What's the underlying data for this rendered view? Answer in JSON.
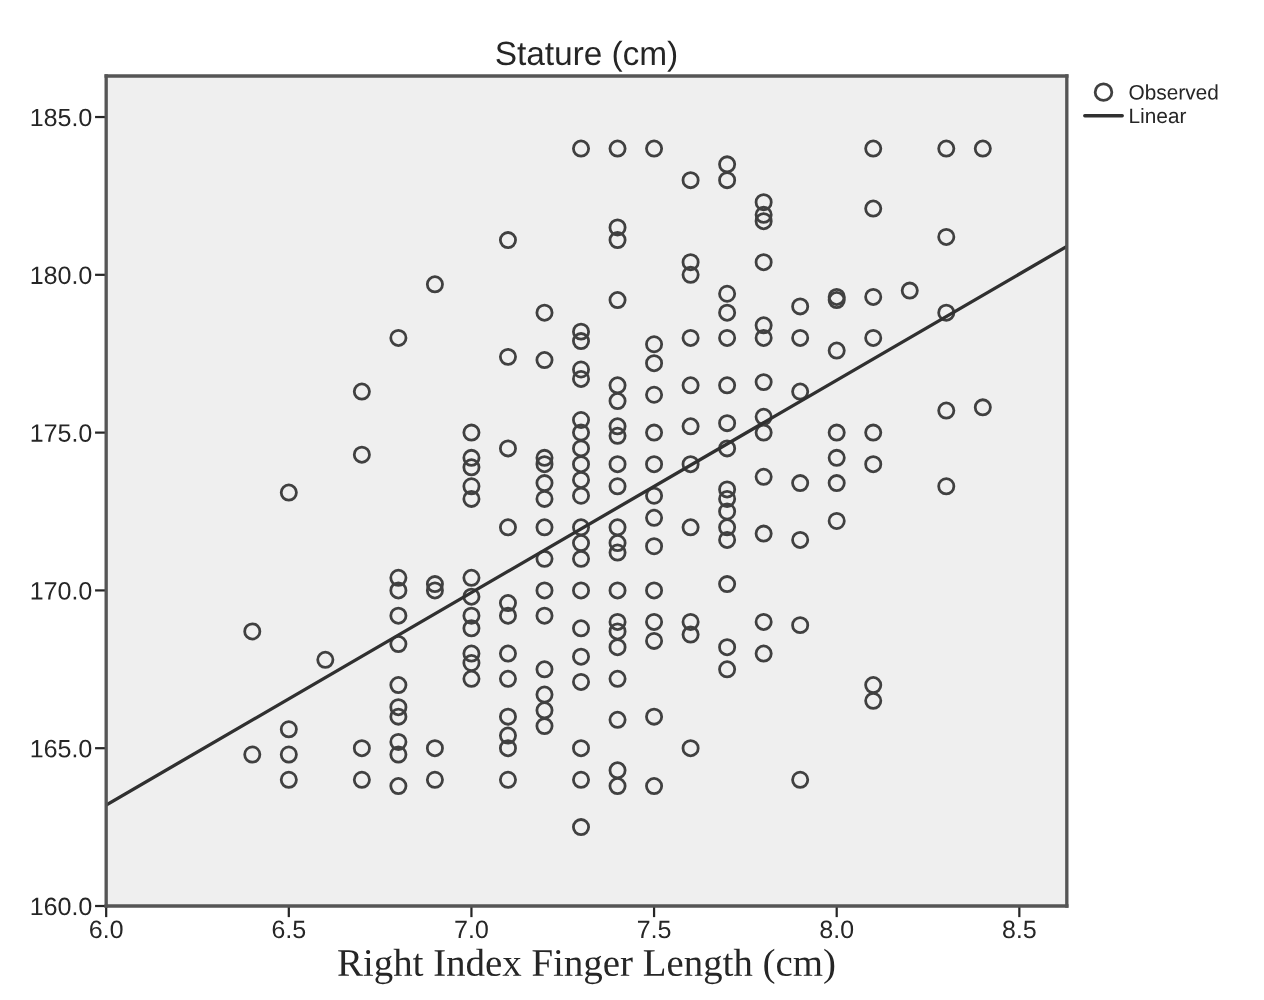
{
  "chart_data": {
    "type": "scatter",
    "title": "Stature (cm)",
    "xlabel": "Right Index Finger Length (cm)",
    "xlim": [
      6.0,
      8.63
    ],
    "ylim": [
      160,
      186.3
    ],
    "xticks": [
      {
        "value": 6.0,
        "label": "6.0"
      },
      {
        "value": 6.5,
        "label": "6.5"
      },
      {
        "value": 7.0,
        "label": "7.0"
      },
      {
        "value": 7.5,
        "label": "7.5"
      },
      {
        "value": 8.0,
        "label": "8.0"
      },
      {
        "value": 8.5,
        "label": "8.5"
      }
    ],
    "yticks": [
      {
        "value": 160,
        "label": "160.0"
      },
      {
        "value": 165,
        "label": "165.0"
      },
      {
        "value": 170,
        "label": "170.0"
      },
      {
        "value": 175,
        "label": "175.0"
      },
      {
        "value": 180,
        "label": "180.0"
      },
      {
        "value": 185,
        "label": "185.0"
      }
    ],
    "grid": false,
    "legend": "top right",
    "series": [
      {
        "name": "Observed",
        "color": "#404040",
        "marker": "circle",
        "x": [
          6.4,
          6.4,
          6.5,
          6.5,
          6.5,
          6.5,
          6.6,
          6.7,
          6.7,
          6.7,
          6.7,
          6.8,
          6.8,
          6.8,
          6.8,
          6.8,
          6.8,
          6.8,
          6.8,
          6.8,
          6.8,
          6.8,
          6.9,
          6.9,
          6.9,
          6.9,
          6.9,
          7.0,
          7.0,
          7.0,
          7.0,
          7.0,
          7.0,
          7.0,
          7.0,
          7.0,
          7.0,
          7.0,
          7.0,
          7.1,
          7.1,
          7.1,
          7.1,
          7.1,
          7.1,
          7.1,
          7.1,
          7.1,
          7.1,
          7.1,
          7.1,
          7.2,
          7.2,
          7.2,
          7.2,
          7.2,
          7.2,
          7.2,
          7.2,
          7.2,
          7.2,
          7.2,
          7.2,
          7.2,
          7.2,
          7.3,
          7.3,
          7.3,
          7.3,
          7.3,
          7.3,
          7.3,
          7.3,
          7.3,
          7.3,
          7.3,
          7.3,
          7.3,
          7.3,
          7.3,
          7.3,
          7.3,
          7.3,
          7.3,
          7.3,
          7.3,
          7.4,
          7.4,
          7.4,
          7.4,
          7.4,
          7.4,
          7.4,
          7.4,
          7.4,
          7.4,
          7.4,
          7.4,
          7.4,
          7.4,
          7.4,
          7.4,
          7.4,
          7.4,
          7.4,
          7.4,
          7.4,
          7.5,
          7.5,
          7.5,
          7.5,
          7.5,
          7.5,
          7.5,
          7.5,
          7.5,
          7.5,
          7.5,
          7.5,
          7.5,
          7.5,
          7.6,
          7.6,
          7.6,
          7.6,
          7.6,
          7.6,
          7.6,
          7.6,
          7.6,
          7.6,
          7.6,
          7.7,
          7.7,
          7.7,
          7.7,
          7.7,
          7.7,
          7.7,
          7.7,
          7.7,
          7.7,
          7.7,
          7.7,
          7.7,
          7.7,
          7.7,
          7.7,
          7.8,
          7.8,
          7.8,
          7.8,
          7.8,
          7.8,
          7.8,
          7.8,
          7.8,
          7.8,
          7.8,
          7.8,
          7.8,
          7.9,
          7.9,
          7.9,
          7.9,
          7.9,
          7.9,
          7.9,
          8.0,
          8.0,
          8.0,
          8.0,
          8.0,
          8.0,
          8.0,
          8.1,
          8.1,
          8.1,
          8.1,
          8.1,
          8.1,
          8.1,
          8.1,
          8.2,
          8.3,
          8.3,
          8.3,
          8.3,
          8.3,
          8.4,
          8.4
        ],
        "values": [
          168.7,
          164.8,
          173.1,
          165.6,
          164.8,
          164.0,
          167.8,
          176.3,
          174.3,
          165.0,
          164.0,
          178.0,
          170.4,
          170.0,
          169.2,
          168.3,
          167.0,
          166.3,
          166.0,
          165.2,
          164.8,
          163.8,
          179.7,
          170.2,
          170.0,
          165.0,
          164.0,
          175.0,
          174.2,
          173.9,
          173.3,
          172.9,
          170.4,
          169.8,
          169.2,
          168.8,
          168.0,
          167.7,
          167.2,
          181.1,
          177.4,
          174.5,
          172.0,
          169.6,
          169.2,
          168.0,
          167.2,
          166.0,
          165.4,
          165.0,
          164.0,
          178.8,
          177.3,
          174.2,
          174.0,
          173.4,
          172.9,
          172.0,
          171.0,
          170.0,
          169.2,
          167.5,
          166.7,
          166.2,
          165.7,
          184.0,
          178.2,
          177.9,
          177.0,
          176.7,
          175.4,
          175.0,
          174.5,
          174.0,
          173.5,
          173.0,
          172.0,
          171.5,
          171.0,
          170.0,
          168.8,
          167.9,
          167.1,
          165.0,
          164.0,
          162.5,
          184.0,
          181.5,
          181.1,
          179.2,
          176.5,
          176.0,
          175.2,
          174.9,
          174.0,
          173.3,
          172.0,
          171.5,
          171.2,
          170.0,
          169.0,
          168.7,
          168.2,
          167.2,
          165.9,
          164.3,
          163.8,
          184.0,
          177.8,
          177.2,
          176.2,
          175.0,
          174.0,
          173.0,
          172.3,
          171.4,
          170.0,
          169.0,
          168.4,
          166.0,
          163.8,
          183.0,
          180.4,
          180.0,
          178.0,
          176.5,
          175.2,
          174.0,
          172.0,
          169.0,
          168.6,
          165.0,
          183.5,
          183.0,
          179.4,
          178.8,
          178.0,
          176.5,
          175.3,
          174.5,
          173.2,
          172.9,
          172.5,
          172.0,
          171.6,
          170.2,
          168.2,
          167.5,
          182.3,
          181.9,
          181.7,
          180.4,
          178.4,
          178.0,
          176.6,
          175.5,
          175.0,
          173.6,
          171.8,
          169.0,
          168.0,
          179.0,
          178.0,
          176.3,
          173.4,
          171.6,
          168.9,
          164.0,
          179.3,
          179.2,
          177.6,
          175.0,
          174.2,
          173.4,
          172.2,
          184.0,
          182.1,
          179.3,
          178.0,
          175.0,
          174.0,
          167.0,
          166.5,
          179.5,
          184.0,
          181.2,
          178.8,
          175.7,
          173.3,
          184.0,
          175.8
        ]
      },
      {
        "name": "Linear",
        "type": "line",
        "marker": "none",
        "color": "#303030",
        "x": [
          6.0,
          8.63
        ],
        "values": [
          163.2,
          180.9
        ]
      }
    ]
  }
}
